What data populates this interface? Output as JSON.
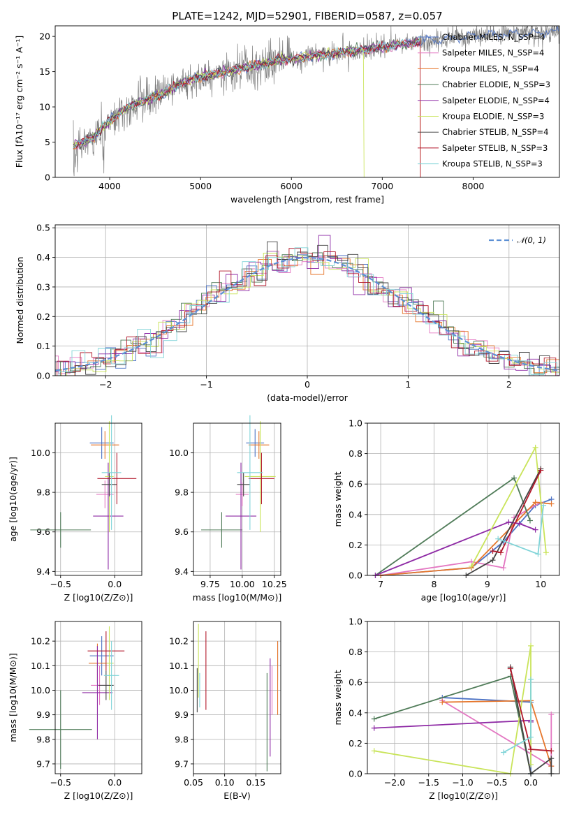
{
  "chart_data": [
    {
      "id": "spectrum",
      "type": "line",
      "title": "PLATE=1242, MJD=52901, FIBERID=0587, z=0.057",
      "xlabel": "wavelength [Angstrom, rest frame]",
      "ylabel": "Flux [fλ10⁻¹⁷ erg cm⁻² s⁻¹ A⁻¹]",
      "xlim": [
        3400,
        8950
      ],
      "ylim": [
        0,
        21.5
      ],
      "xticks": [
        4000,
        5000,
        6000,
        7000,
        8000
      ],
      "yticks": [
        0,
        5,
        10,
        15,
        20
      ],
      "grid": false,
      "legend_position": "right",
      "data_trend": {
        "x": [
          3600,
          3800,
          4000,
          4200,
          4400,
          4600,
          4800,
          5000,
          5200,
          5400,
          5600,
          5800,
          6000,
          6200,
          6400,
          6600,
          6800,
          7000,
          7200,
          7400,
          7600,
          7800,
          8000,
          8200,
          8400,
          8600,
          8800
        ],
        "y": [
          4.5,
          5.5,
          8.0,
          10.0,
          11.0,
          12.0,
          13.5,
          14.2,
          14.8,
          15.3,
          15.9,
          16.4,
          16.8,
          17.2,
          17.5,
          17.8,
          18.1,
          18.5,
          18.8,
          19.2,
          19.5,
          19.8,
          20.1,
          20.2,
          20.4,
          20.5,
          20.6
        ]
      },
      "series": [
        {
          "name": "Chabrier MILES, N_SSP=4",
          "color": "#4c72c4"
        },
        {
          "name": "Salpeter MILES, N_SSP=4",
          "color": "#e377c2"
        },
        {
          "name": "Kroupa MILES, N_SSP=4",
          "color": "#e6762b"
        },
        {
          "name": "Chabrier ELODIE, N_SSP=3",
          "color": "#4f7b58"
        },
        {
          "name": "Salpeter ELODIE, N_SSP=4",
          "color": "#8e2aa5"
        },
        {
          "name": "Kroupa ELODIE, N_SSP=3",
          "color": "#c9e45a"
        },
        {
          "name": "Chabrier STELIB, N_SSP=4",
          "color": "#444444"
        },
        {
          "name": "Salpeter STELIB, N_SSP=3",
          "color": "#b2182b"
        },
        {
          "name": "Kroupa STELIB, N_SSP=3",
          "color": "#80d4d8"
        }
      ]
    },
    {
      "id": "residuals",
      "type": "line",
      "xlabel": "(data-model)/error",
      "ylabel": "Normed distribution",
      "xlim": [
        -2.5,
        2.5
      ],
      "ylim": [
        0,
        0.51
      ],
      "xticks": [
        -2,
        -1,
        0,
        1,
        2
      ],
      "yticks": [
        0.0,
        0.1,
        0.2,
        0.3,
        0.4,
        0.5
      ],
      "grid": true,
      "legend": "𝒩(0, 1)",
      "legend_position": "top-right",
      "gaussian": {
        "mean": 0,
        "sigma": 1
      }
    },
    {
      "id": "age-vs-Z",
      "type": "scatter",
      "xlabel": "Z [log10(Z/Z⊙)]",
      "ylabel": "age  [log10(age/yr)]",
      "xlim": [
        -0.55,
        0.25
      ],
      "ylim": [
        9.38,
        10.15
      ],
      "xticks": [
        -0.5,
        0.0
      ],
      "yticks": [
        9.4,
        9.6,
        9.8,
        10.0
      ],
      "grid": true,
      "points": [
        {
          "series": 0,
          "x": -0.12,
          "y": 10.05,
          "xerr": 0.11,
          "yerr": 0.08
        },
        {
          "series": 1,
          "x": -0.09,
          "y": 9.79,
          "xerr": 0.08,
          "yerr": 0.07
        },
        {
          "series": 2,
          "x": -0.09,
          "y": 10.04,
          "xerr": 0.13,
          "yerr": 0.07
        },
        {
          "series": 3,
          "x": -0.5,
          "y": 9.61,
          "xerr": 0.28,
          "yerr": 0.09
        },
        {
          "series": 4,
          "x": -0.06,
          "y": 9.68,
          "xerr": 0.14,
          "yerr": 0.27
        },
        {
          "series": 5,
          "x": -0.05,
          "y": 9.88,
          "xerr": 0.04,
          "yerr": 0.28
        },
        {
          "series": 6,
          "x": -0.05,
          "y": 9.84,
          "xerr": 0.07,
          "yerr": 0.06
        },
        {
          "series": 7,
          "x": 0.02,
          "y": 9.87,
          "xerr": 0.18,
          "yerr": 0.13
        },
        {
          "series": 8,
          "x": -0.03,
          "y": 9.9,
          "xerr": 0.09,
          "yerr": 0.29
        }
      ]
    },
    {
      "id": "age-vs-mass",
      "type": "scatter",
      "xlabel": "mass [log10(M/M⊙)]",
      "ylabel": "",
      "xlim": [
        9.62,
        10.3
      ],
      "ylim": [
        9.38,
        10.15
      ],
      "xticks": [
        9.75,
        10.0,
        10.25
      ],
      "yticks": [
        9.4,
        9.6,
        9.8,
        10.0
      ],
      "grid": true,
      "points": [
        {
          "series": 0,
          "x": 10.1,
          "y": 10.05,
          "xerr": 0.07,
          "yerr": 0.07
        },
        {
          "series": 1,
          "x": 10.0,
          "y": 9.79,
          "xerr": 0.05,
          "yerr": 0.06
        },
        {
          "series": 2,
          "x": 10.13,
          "y": 10.04,
          "xerr": 0.08,
          "yerr": 0.07
        },
        {
          "series": 3,
          "x": 9.84,
          "y": 9.61,
          "xerr": 0.16,
          "yerr": 0.09
        },
        {
          "series": 4,
          "x": 9.99,
          "y": 9.68,
          "xerr": 0.12,
          "yerr": 0.27
        },
        {
          "series": 5,
          "x": 10.14,
          "y": 9.88,
          "xerr": 0.12,
          "yerr": 0.28
        },
        {
          "series": 6,
          "x": 10.01,
          "y": 9.84,
          "xerr": 0.05,
          "yerr": 0.06
        },
        {
          "series": 7,
          "x": 10.15,
          "y": 9.87,
          "xerr": 0.1,
          "yerr": 0.13
        },
        {
          "series": 8,
          "x": 10.06,
          "y": 9.9,
          "xerr": 0.1,
          "yerr": 0.29
        }
      ]
    },
    {
      "id": "weight-vs-age",
      "type": "line",
      "xlabel": "age  [log10(age/yr)]",
      "ylabel": "mass weight",
      "xlim": [
        6.75,
        10.35
      ],
      "ylim": [
        0,
        1.0
      ],
      "xticks": [
        7,
        8,
        9,
        10
      ],
      "yticks": [
        0.0,
        0.2,
        0.4,
        0.6,
        0.8,
        1.0
      ],
      "grid": true,
      "series": [
        {
          "series": 0,
          "x": [
            7.0,
            8.7,
            9.3,
            9.9,
            10.2
          ],
          "y": [
            0.0,
            0.05,
            0.22,
            0.46,
            0.5
          ]
        },
        {
          "series": 1,
          "x": [
            7.0,
            8.7,
            9.3,
            9.5,
            10.0
          ],
          "y": [
            0.0,
            0.09,
            0.05,
            0.38,
            0.48
          ]
        },
        {
          "series": 2,
          "x": [
            7.0,
            8.7,
            9.9,
            10.2
          ],
          "y": [
            0.0,
            0.05,
            0.48,
            0.47
          ]
        },
        {
          "series": 3,
          "x": [
            6.9,
            9.5,
            9.8
          ],
          "y": [
            0.0,
            0.64,
            0.36
          ]
        },
        {
          "series": 4,
          "x": [
            6.9,
            9.4,
            9.6,
            9.9
          ],
          "y": [
            0.0,
            0.35,
            0.34,
            0.3
          ]
        },
        {
          "series": 5,
          "x": [
            8.7,
            9.9,
            10.1
          ],
          "y": [
            0.06,
            0.84,
            0.15
          ]
        },
        {
          "series": 6,
          "x": [
            8.6,
            9.1,
            10.0
          ],
          "y": [
            0.0,
            0.1,
            0.7
          ]
        },
        {
          "series": 7,
          "x": [
            9.1,
            9.25,
            10.0
          ],
          "y": [
            0.16,
            0.15,
            0.69
          ]
        },
        {
          "series": 8,
          "x": [
            9.2,
            9.95,
            10.05
          ],
          "y": [
            0.24,
            0.14,
            0.46
          ]
        }
      ]
    },
    {
      "id": "mass-vs-Z",
      "type": "scatter",
      "xlabel": "Z [log10(Z/Z⊙)]",
      "ylabel": "mass [log10(M/M⊙)]",
      "xlim": [
        -0.55,
        0.25
      ],
      "ylim": [
        9.66,
        10.28
      ],
      "xticks": [
        -0.5,
        0.0
      ],
      "yticks": [
        9.7,
        9.8,
        9.9,
        10.0,
        10.1,
        10.2
      ],
      "grid": true,
      "points": [
        {
          "series": 0,
          "x": -0.12,
          "y": 10.14,
          "xerr": 0.11,
          "yerr": 0.08
        },
        {
          "series": 1,
          "x": -0.14,
          "y": 10.02,
          "xerr": 0.08,
          "yerr": 0.08
        },
        {
          "series": 2,
          "x": -0.16,
          "y": 10.11,
          "xerr": 0.08,
          "yerr": 0.08
        },
        {
          "series": 3,
          "x": -0.5,
          "y": 9.84,
          "xerr": 0.29,
          "yerr": 0.16
        },
        {
          "series": 4,
          "x": -0.16,
          "y": 9.99,
          "xerr": 0.14,
          "yerr": 0.19
        },
        {
          "series": 5,
          "x": -0.05,
          "y": 10.11,
          "xerr": 0.04,
          "yerr": 0.15
        },
        {
          "series": 6,
          "x": -0.08,
          "y": 10.02,
          "xerr": 0.07,
          "yerr": 0.06
        },
        {
          "series": 7,
          "x": -0.08,
          "y": 10.16,
          "xerr": 0.17,
          "yerr": 0.08
        },
        {
          "series": 8,
          "x": -0.03,
          "y": 10.06,
          "xerr": 0.07,
          "yerr": 0.14
        }
      ]
    },
    {
      "id": "mass-vs-EBV",
      "type": "scatter",
      "xlabel": "E(B-V)",
      "ylabel": "",
      "xlim": [
        0.05,
        0.19
      ],
      "ylim": [
        9.66,
        10.28
      ],
      "xticks": [
        0.05,
        0.1,
        0.15
      ],
      "yticks": [
        9.7,
        9.8,
        9.9,
        10.0,
        10.1,
        10.2
      ],
      "grid": true,
      "points": [
        {
          "series": 0,
          "x": 0.185,
          "y": 10.12,
          "xerr": 0,
          "yerr": 0.08
        },
        {
          "series": 1,
          "x": 0.176,
          "y": 10.0,
          "xerr": 0,
          "yerr": 0.1
        },
        {
          "series": 2,
          "x": 0.185,
          "y": 10.05,
          "xerr": 0,
          "yerr": 0.15
        },
        {
          "series": 3,
          "x": 0.168,
          "y": 9.87,
          "xerr": 0,
          "yerr": 0.2
        },
        {
          "series": 4,
          "x": 0.173,
          "y": 9.93,
          "xerr": 0,
          "yerr": 0.2
        },
        {
          "series": 5,
          "x": 0.058,
          "y": 10.12,
          "xerr": 0,
          "yerr": 0.15
        },
        {
          "series": 6,
          "x": 0.056,
          "y": 10.0,
          "xerr": 0,
          "yerr": 0.09
        },
        {
          "series": 7,
          "x": 0.07,
          "y": 10.08,
          "xerr": 0,
          "yerr": 0.16
        },
        {
          "series": 8,
          "x": 0.06,
          "y": 10.0,
          "xerr": 0,
          "yerr": 0.07
        }
      ]
    },
    {
      "id": "weight-vs-Z",
      "type": "line",
      "xlabel": "Z [log10(Z/Z⊙)]",
      "ylabel": "mass weight",
      "xlim": [
        -2.4,
        0.42
      ],
      "ylim": [
        0,
        1.0
      ],
      "xticks": [
        -2.0,
        -1.5,
        -1.0,
        -0.5,
        0.0
      ],
      "yticks": [
        0.0,
        0.2,
        0.4,
        0.6,
        0.8,
        1.0
      ],
      "grid": true,
      "series": [
        {
          "series": 0,
          "x": [
            -1.3,
            0.0,
            0.0
          ],
          "y": [
            0.5,
            0.47,
            0.0
          ]
        },
        {
          "series": 1,
          "x": [
            -1.3,
            0.3,
            0.3
          ],
          "y": [
            0.48,
            0.05,
            0.39
          ]
        },
        {
          "series": 2,
          "x": [
            -1.3,
            0.0,
            0.3
          ],
          "y": [
            0.47,
            0.48,
            0.05
          ]
        },
        {
          "series": 3,
          "x": [
            -2.3,
            -0.3,
            0.0
          ],
          "y": [
            0.36,
            0.64,
            0.0
          ]
        },
        {
          "series": 4,
          "x": [
            -2.3,
            0.0,
            0.0
          ],
          "y": [
            0.3,
            0.35,
            0.34
          ]
        },
        {
          "series": 5,
          "x": [
            -2.3,
            -0.3,
            0.0,
            0.0
          ],
          "y": [
            0.15,
            0.0,
            0.84,
            0.06
          ]
        },
        {
          "series": 6,
          "x": [
            -0.3,
            0.0,
            0.3,
            0.3
          ],
          "y": [
            0.7,
            0.0,
            0.1,
            0.0
          ]
        },
        {
          "series": 7,
          "x": [
            -0.3,
            0.0,
            0.3
          ],
          "y": [
            0.69,
            0.16,
            0.15
          ]
        },
        {
          "series": 8,
          "x": [
            -0.4,
            0.0,
            0.0
          ],
          "y": [
            0.14,
            0.24,
            0.62
          ]
        }
      ]
    }
  ]
}
